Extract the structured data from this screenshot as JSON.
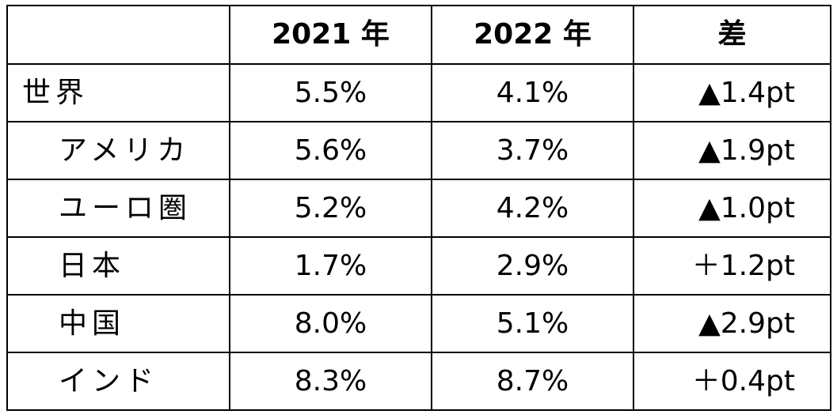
{
  "table": {
    "headers": [
      "",
      "2021 年",
      "2022 年",
      "差"
    ],
    "rows": [
      {
        "label": "世界",
        "indent": false,
        "y2021": "5.5%",
        "y2022": "4.1%",
        "diff": "▲1.4pt"
      },
      {
        "label": "アメリカ",
        "indent": true,
        "y2021": "5.6%",
        "y2022": "3.7%",
        "diff": "▲1.9pt"
      },
      {
        "label": "ユーロ圏",
        "indent": true,
        "y2021": "5.2%",
        "y2022": "4.2%",
        "diff": "▲1.0pt"
      },
      {
        "label": "日本",
        "indent": true,
        "y2021": "1.7%",
        "y2022": "2.9%",
        "diff": "＋1.2pt"
      },
      {
        "label": "中国",
        "indent": true,
        "y2021": "8.0%",
        "y2022": "5.1%",
        "diff": "▲2.9pt"
      },
      {
        "label": "インド",
        "indent": true,
        "y2021": "8.3%",
        "y2022": "8.7%",
        "diff": "＋0.4pt"
      }
    ]
  }
}
